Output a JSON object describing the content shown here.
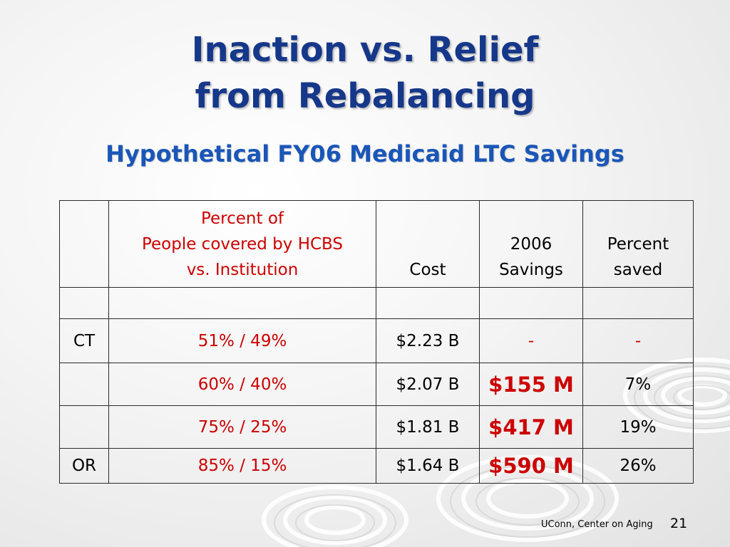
{
  "slide": {
    "title_line1": "Inaction vs. Relief",
    "title_line2": "from Rebalancing",
    "subtitle": "Hypothetical FY06 Medicaid LTC Savings"
  },
  "table": {
    "header": {
      "col1": "",
      "col2_line1": "Percent of",
      "col2_line2": "People covered by HCBS",
      "col2_line3": "vs. Institution",
      "col3": "Cost",
      "col4_line1": "2006",
      "col4_line2": "Savings",
      "col5_line1": "Percent",
      "col5_line2": "saved"
    },
    "rows": [
      {
        "state": "CT",
        "split": "51% / 49%",
        "cost": "$2.23 B",
        "savings": "-",
        "percent": "-"
      },
      {
        "state": "",
        "split": "60% / 40%",
        "cost": "$2.07 B",
        "savings": "$155 M",
        "percent": "7%"
      },
      {
        "state": "",
        "split": "75% / 25%",
        "cost": "$1.81 B",
        "savings": "$417 M",
        "percent": "19%"
      },
      {
        "state": "OR",
        "split": "85% / 15%",
        "cost": "$1.64 B",
        "savings": "$590 M",
        "percent": "26%"
      }
    ]
  },
  "footer": {
    "source": "UConn, Center on Aging",
    "page": "21"
  },
  "colors": {
    "title": "#16388a",
    "subtitle": "#1a56b8",
    "accent_red": "#cc0000"
  }
}
